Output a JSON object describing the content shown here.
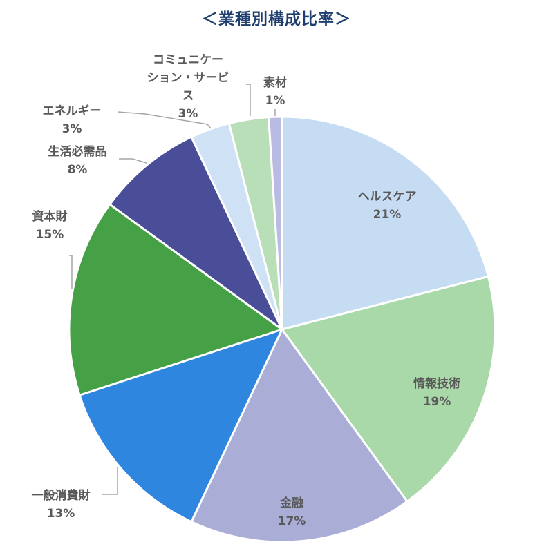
{
  "chart_data": {
    "type": "pie",
    "title": "＜業種別構成比率＞",
    "colors": {
      "slice_border": "#ffffff",
      "leader_line": "#a6a6a6",
      "label_text": "#595959",
      "title_text": "#1f3f6e"
    },
    "slices": [
      {
        "label": "ヘルスケア",
        "value": 21,
        "value_label": "21%",
        "color": "#c5dcf3"
      },
      {
        "label": "情報技術",
        "value": 19,
        "value_label": "19%",
        "color": "#a9d8a9"
      },
      {
        "label": "金融",
        "value": 17,
        "value_label": "17%",
        "color": "#aaaed6"
      },
      {
        "label": "一般消費財",
        "value": 13,
        "value_label": "13%",
        "color": "#2e86de"
      },
      {
        "label": "資本財",
        "value": 15,
        "value_label": "15%",
        "color": "#46a046"
      },
      {
        "label": "生活必需品",
        "value": 8,
        "value_label": "8%",
        "color": "#4a4e98"
      },
      {
        "label": "エネルギー",
        "value": 3,
        "value_label": "3%",
        "color": "#cfe2f5"
      },
      {
        "label": "コミュニケーション・サービス",
        "value": 3,
        "value_label": "3%",
        "color": "#b8dfb8"
      },
      {
        "label": "素材",
        "value": 1,
        "value_label": "1%",
        "color": "#b9bce0"
      }
    ]
  }
}
